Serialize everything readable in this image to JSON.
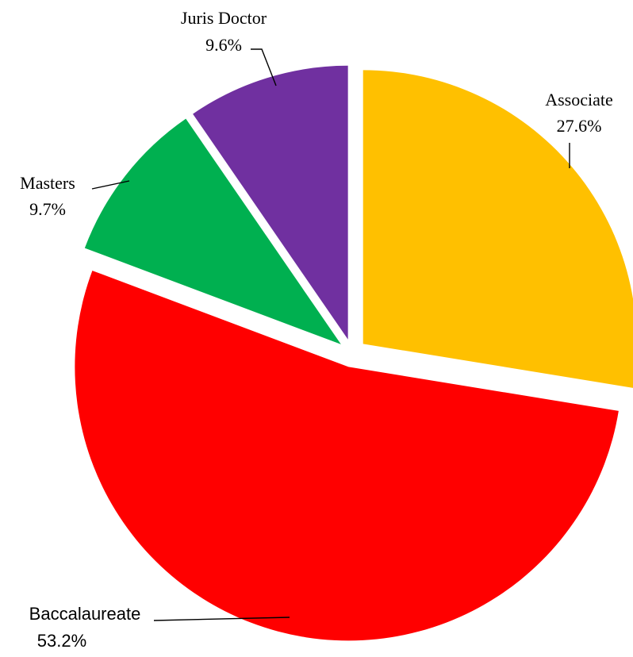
{
  "chart_data": {
    "type": "pie",
    "title": "",
    "legend": "none",
    "slices": [
      {
        "label": "Associate",
        "value": 27.6,
        "display": "27.6%",
        "color": "#FFC000",
        "explode": true
      },
      {
        "label": "Baccalaureate",
        "value": 53.2,
        "display": "53.2%",
        "color": "#FF0000",
        "explode": true
      },
      {
        "label": "Masters",
        "value": 9.7,
        "display": "9.7%",
        "color": "#00B050",
        "explode": true
      },
      {
        "label": "Juris Doctor",
        "value": 9.6,
        "display": "9.6%",
        "color": "#7030A0",
        "explode": true
      }
    ]
  }
}
